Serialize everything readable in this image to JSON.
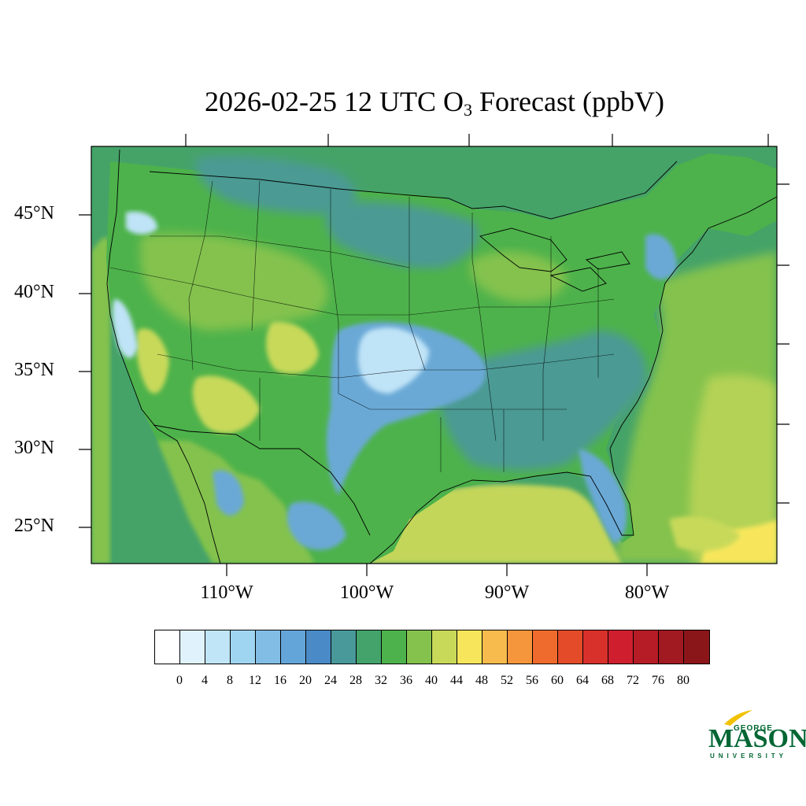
{
  "title": {
    "main": "2026-02-25 12 UTC O",
    "subscript": "3",
    "suffix": " Forecast (ppbV)"
  },
  "map": {
    "lat_labels": [
      "45°N",
      "40°N",
      "35°N",
      "30°N",
      "25°N"
    ],
    "lon_labels": [
      "110°W",
      "100°W",
      "90°W",
      "80°W"
    ],
    "colors": {
      "ocean": "#45a368",
      "gulf": "#c3d65a",
      "land_base": "#4db24b",
      "land_light": "#84c24d",
      "land_yellow": "#c8d95a",
      "land_blue": "#4b9a94",
      "land_skyblue": "#6aa9d6",
      "land_paleblue": "#bfe3f7",
      "atlantic_green": "#84c24d",
      "boundary": "#000000"
    }
  },
  "colorbar": {
    "colors": [
      "#ffffff",
      "#e0f2fb",
      "#bfe5f7",
      "#a0d5f2",
      "#82bde6",
      "#64a5d9",
      "#4a8ac6",
      "#49999a",
      "#43a36b",
      "#4db24b",
      "#84c24d",
      "#c8d95a",
      "#f7e65b",
      "#f7bb4d",
      "#f5953c",
      "#ef6b2d",
      "#e34b29",
      "#d8302b",
      "#cf1f2e",
      "#b61c25",
      "#a21a21",
      "#8b1619"
    ],
    "labels": [
      "0",
      "4",
      "8",
      "12",
      "16",
      "20",
      "24",
      "28",
      "32",
      "36",
      "40",
      "44",
      "48",
      "52",
      "56",
      "60",
      "64",
      "68",
      "72",
      "76",
      "80"
    ]
  },
  "logo": {
    "line1": "GEORGE",
    "line2": "MASON",
    "line3": "UNIVERSITY"
  }
}
